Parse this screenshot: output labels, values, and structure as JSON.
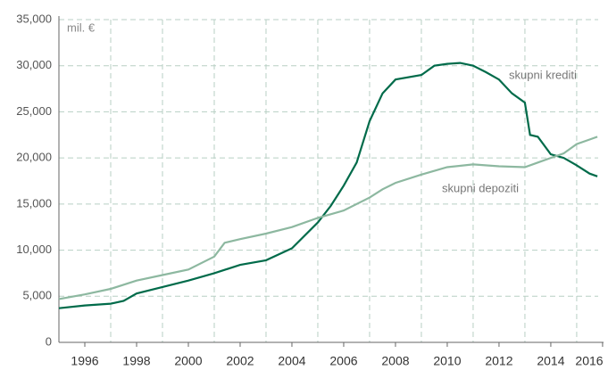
{
  "chart_data": {
    "type": "line",
    "axis_label": "mil. €",
    "xlim": [
      1995,
      2015.83
    ],
    "xticks": [
      1996,
      1998,
      2000,
      2002,
      2004,
      2006,
      2008,
      2010,
      2012,
      2014,
      2016
    ],
    "ylim": [
      0,
      35000
    ],
    "yticks": [
      0,
      {
        "value": 5000,
        "label": "5,000"
      },
      {
        "value": 10000,
        "label": "10,000"
      },
      {
        "value": 15000,
        "label": "15,000"
      },
      {
        "value": 20000,
        "label": "20,000"
      },
      {
        "value": 25000,
        "label": "25,000"
      },
      {
        "value": 30000,
        "label": "30,000"
      },
      {
        "value": 35000,
        "label": "35,000"
      }
    ],
    "grid": true,
    "series": [
      {
        "name": "skupni krediti",
        "color": "#006b4a",
        "x": [
          1995,
          1996,
          1997,
          1997.5,
          1998,
          1999,
          2000,
          2001,
          2002,
          2003,
          2004,
          2005,
          2005.5,
          2006,
          2006.5,
          2007,
          2007.5,
          2008,
          2009,
          2009.5,
          2010,
          2010.5,
          2011,
          2011.5,
          2012,
          2012.5,
          2013,
          2013.2,
          2013.5,
          2014,
          2014.5,
          2015,
          2015.5,
          2015.8
        ],
        "values": [
          3700,
          4000,
          4200,
          4500,
          5300,
          6000,
          6700,
          7500,
          8400,
          8900,
          10200,
          13000,
          14800,
          17000,
          19500,
          24000,
          27000,
          28500,
          29000,
          30000,
          30200,
          30300,
          30000,
          29300,
          28500,
          27000,
          26000,
          22500,
          22300,
          20400,
          20000,
          19200,
          18300,
          18000
        ]
      },
      {
        "name": "skupni depoziti",
        "color": "#8db8a0",
        "x": [
          1995,
          1996,
          1997,
          1998,
          1999,
          2000,
          2001,
          2001.4,
          2002,
          2003,
          2004,
          2005,
          2006,
          2007,
          2007.5,
          2008,
          2009,
          2010,
          2011,
          2012,
          2013,
          2013.5,
          2014,
          2014.5,
          2015,
          2015.5,
          2015.8
        ],
        "values": [
          4700,
          5200,
          5800,
          6700,
          7300,
          7900,
          9300,
          10800,
          11200,
          11800,
          12500,
          13500,
          14300,
          15700,
          16600,
          17300,
          18200,
          19000,
          19300,
          19100,
          19000,
          19500,
          20000,
          20500,
          21500,
          22000,
          22300
        ]
      }
    ]
  }
}
